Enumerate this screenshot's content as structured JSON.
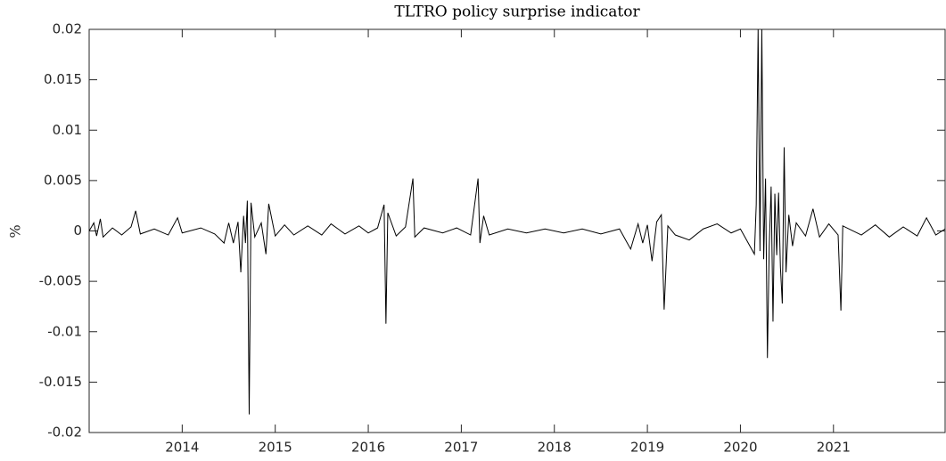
{
  "chart_data": {
    "type": "line",
    "title": "TLTRO policy surprise indicator",
    "y_label": "%",
    "color": "#000000",
    "xlim": [
      2013,
      2022.2
    ],
    "xticks": [
      2014,
      2015,
      2016,
      2017,
      2018,
      2019,
      2020,
      2021
    ],
    "ylim": [
      -0.02,
      0.02
    ],
    "yticks": [
      -0.02,
      -0.015,
      -0.01,
      -0.005,
      0,
      0.005,
      0.01,
      0.015,
      0.02
    ],
    "grid": false,
    "x": [
      2013.0,
      2013.05,
      2013.08,
      2013.12,
      2013.15,
      2013.25,
      2013.35,
      2013.45,
      2013.5,
      2013.55,
      2013.7,
      2013.85,
      2013.95,
      2014.0,
      2014.2,
      2014.35,
      2014.45,
      2014.5,
      2014.55,
      2014.6,
      2014.63,
      2014.66,
      2014.68,
      2014.7,
      2014.72,
      2014.74,
      2014.78,
      2014.85,
      2014.9,
      2014.93,
      2015.0,
      2015.1,
      2015.2,
      2015.35,
      2015.5,
      2015.6,
      2015.75,
      2015.9,
      2016.0,
      2016.1,
      2016.17,
      2016.19,
      2016.21,
      2016.3,
      2016.4,
      2016.48,
      2016.5,
      2016.6,
      2016.8,
      2016.95,
      2017.1,
      2017.18,
      2017.2,
      2017.24,
      2017.3,
      2017.5,
      2017.7,
      2017.9,
      2018.1,
      2018.3,
      2018.5,
      2018.7,
      2018.82,
      2018.9,
      2018.95,
      2019.0,
      2019.05,
      2019.1,
      2019.15,
      2019.18,
      2019.22,
      2019.3,
      2019.45,
      2019.6,
      2019.75,
      2019.9,
      2020.0,
      2020.15,
      2020.17,
      2020.19,
      2020.21,
      2020.23,
      2020.25,
      2020.27,
      2020.29,
      2020.31,
      2020.33,
      2020.35,
      2020.37,
      2020.39,
      2020.41,
      2020.43,
      2020.45,
      2020.47,
      2020.49,
      2020.52,
      2020.56,
      2020.6,
      2020.7,
      2020.78,
      2020.85,
      2020.95,
      2021.05,
      2021.08,
      2021.1,
      2021.3,
      2021.45,
      2021.6,
      2021.75,
      2021.9,
      2022.0,
      2022.1,
      2022.2
    ],
    "values": [
      0,
      0.0008,
      -0.0005,
      0.0012,
      -0.0006,
      0.0003,
      -0.0004,
      0.0004,
      0.002,
      -0.0003,
      0.0002,
      -0.0004,
      0.0013,
      -0.0002,
      0.0003,
      -0.0003,
      -0.0012,
      0.0008,
      -0.0012,
      0.0009,
      -0.0041,
      0.0015,
      -0.0012,
      0.003,
      -0.0182,
      0.0028,
      -0.0006,
      0.0008,
      -0.0023,
      0.0027,
      -0.0005,
      0.0006,
      -0.0004,
      0.0005,
      -0.0004,
      0.0007,
      -0.0003,
      0.0005,
      -0.0002,
      0.0003,
      0.0026,
      -0.0092,
      0.0018,
      -0.0005,
      0.0004,
      0.0052,
      -0.0006,
      0.0003,
      -0.0002,
      0.0003,
      -0.0004,
      0.0052,
      -0.0012,
      0.0015,
      -0.0004,
      0.0002,
      -0.0002,
      0.0002,
      -0.0002,
      0.0002,
      -0.0003,
      0.0002,
      -0.0018,
      0.0007,
      -0.0012,
      0.0006,
      -0.003,
      0.0009,
      0.0016,
      -0.0078,
      0.0005,
      -0.0004,
      -0.0009,
      0.0002,
      0.0007,
      -0.0002,
      0.0002,
      -0.0023,
      0.0026,
      0.02,
      -0.002,
      0.02,
      -0.0028,
      0.0052,
      -0.0126,
      -0.0015,
      0.0044,
      -0.009,
      0.0037,
      -0.0024,
      0.0038,
      -0.0036,
      -0.0072,
      0.0083,
      -0.0041,
      0.0016,
      -0.0015,
      0.0008,
      -0.0005,
      0.0022,
      -0.0006,
      0.0007,
      -0.0004,
      -0.0079,
      0.0005,
      -0.0004,
      0.0006,
      -0.0006,
      0.0004,
      -0.0005,
      0.0013,
      -0.0004,
      0.0002
    ]
  }
}
